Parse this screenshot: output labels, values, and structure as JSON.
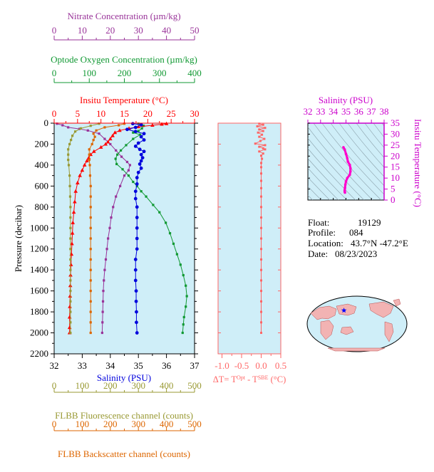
{
  "colors": {
    "nitrate": "#993399",
    "oxygen": "#119933",
    "temperature": "#ff0000",
    "salinity": "#0000dd",
    "fluorescence": "#999933",
    "backscatter": "#dd6600",
    "delta_t": "#ff6666",
    "ts_line": "#ff00cc",
    "panel_bg": "#cfeef8",
    "salinity_axis": "#cc00cc"
  },
  "chart_data": [
    {
      "type": "line",
      "panel": "main-profile",
      "ylabel": "Pressure (decibar)",
      "ylim": [
        2200,
        0
      ],
      "yticks": [
        "0",
        "200",
        "400",
        "600",
        "800",
        "1000",
        "1200",
        "1400",
        "1600",
        "1800",
        "2000",
        "2200"
      ],
      "axes": {
        "nitrate": {
          "label": "Nitrate Concentration (µm/kg)",
          "lim": [
            0,
            50
          ],
          "ticks": [
            "0",
            "10",
            "20",
            "30",
            "40",
            "50"
          ]
        },
        "oxygen": {
          "label": "Optode Oxygen Concentration (µm/kg)",
          "lim": [
            0,
            400
          ],
          "ticks": [
            "0",
            "100",
            "200",
            "300",
            "400"
          ]
        },
        "temperature": {
          "label": "Insitu Temperature (°C)",
          "lim": [
            0,
            30
          ],
          "ticks": [
            "0",
            "5",
            "10",
            "15",
            "20",
            "25",
            "30"
          ]
        },
        "salinity": {
          "label": "Salinity (PSU)",
          "lim": [
            32,
            37
          ],
          "ticks": [
            "32",
            "33",
            "34",
            "35",
            "36",
            "37"
          ]
        },
        "fluorescence": {
          "label": "FLBB Fluorescence channel (counts)",
          "lim": [
            0,
            500
          ],
          "ticks": [
            "0",
            "100",
            "200",
            "300",
            "400",
            "500"
          ]
        },
        "backscatter": {
          "label": "FLBB Backscatter channel (counts)",
          "lim": [
            0,
            500
          ],
          "ticks": [
            "0",
            "100",
            "200",
            "300",
            "400",
            "500"
          ]
        }
      },
      "series": [
        {
          "key": "nitrate",
          "axis": "nitrate",
          "marker": "square",
          "points": [
            [
              1,
              5
            ],
            [
              3,
              20
            ],
            [
              5,
              40
            ],
            [
              9,
              55
            ],
            [
              12,
              70
            ],
            [
              16,
              100
            ],
            [
              18,
              150
            ],
            [
              20,
              200
            ],
            [
              22,
              260
            ],
            [
              24,
              320
            ],
            [
              26,
              370
            ],
            [
              27,
              400
            ],
            [
              26.5,
              450
            ],
            [
              25,
              500
            ],
            [
              23.5,
              600
            ],
            [
              22,
              700
            ],
            [
              21,
              800
            ],
            [
              20.3,
              900
            ],
            [
              19.8,
              1000
            ],
            [
              19.2,
              1100
            ],
            [
              18.8,
              1200
            ],
            [
              18.4,
              1300
            ],
            [
              18,
              1400
            ],
            [
              17.7,
              1500
            ],
            [
              17.5,
              1600
            ],
            [
              17.4,
              1700
            ],
            [
              17.3,
              1800
            ],
            [
              17.2,
              1900
            ],
            [
              17.1,
              2000
            ]
          ]
        },
        {
          "key": "oxygen",
          "axis": "oxygen",
          "marker": "square",
          "points": [
            [
              240,
              5
            ],
            [
              255,
              25
            ],
            [
              250,
              50
            ],
            [
              240,
              75
            ],
            [
              225,
              90
            ],
            [
              245,
              110
            ],
            [
              225,
              150
            ],
            [
              205,
              210
            ],
            [
              190,
              260
            ],
            [
              180,
              300
            ],
            [
              175,
              340
            ],
            [
              178,
              390
            ],
            [
              195,
              440
            ],
            [
              212,
              500
            ],
            [
              225,
              560
            ],
            [
              236,
              600
            ],
            [
              248,
              650
            ],
            [
              262,
              700
            ],
            [
              282,
              780
            ],
            [
              300,
              850
            ],
            [
              318,
              950
            ],
            [
              330,
              1050
            ],
            [
              340,
              1150
            ],
            [
              350,
              1250
            ],
            [
              360,
              1350
            ],
            [
              368,
              1450
            ],
            [
              375,
              1550
            ],
            [
              378,
              1650
            ],
            [
              375,
              1750
            ],
            [
              370,
              1850
            ],
            [
              368,
              1920
            ],
            [
              366,
              2000
            ]
          ]
        },
        {
          "key": "temperature",
          "axis": "temperature",
          "marker": "triangle",
          "points": [
            [
              24,
              5
            ],
            [
              23,
              10
            ],
            [
              21,
              20
            ],
            [
              18,
              35
            ],
            [
              16,
              50
            ],
            [
              14,
              70
            ],
            [
              13,
              90
            ],
            [
              12.5,
              120
            ],
            [
              12,
              150
            ],
            [
              11.5,
              180
            ],
            [
              11,
              200
            ],
            [
              10,
              230
            ],
            [
              8.5,
              270
            ],
            [
              7.8,
              300
            ],
            [
              7.4,
              330
            ],
            [
              7,
              360
            ],
            [
              6.5,
              400
            ],
            [
              6,
              450
            ],
            [
              5.5,
              500
            ],
            [
              5,
              570
            ],
            [
              4.6,
              650
            ],
            [
              4.4,
              750
            ],
            [
              4.2,
              850
            ],
            [
              4,
              950
            ],
            [
              3.9,
              1050
            ],
            [
              3.8,
              1150
            ],
            [
              3.7,
              1250
            ],
            [
              3.6,
              1350
            ],
            [
              3.5,
              1450
            ],
            [
              3.45,
              1550
            ],
            [
              3.4,
              1650
            ],
            [
              3.35,
              1750
            ],
            [
              3.3,
              1850
            ],
            [
              3.3,
              1950
            ],
            [
              3.3,
              2000
            ]
          ]
        },
        {
          "key": "salinity",
          "axis": "salinity",
          "marker": "circle",
          "points": [
            [
              34.8,
              5
            ],
            [
              35.1,
              15
            ],
            [
              34.9,
              40
            ],
            [
              34.6,
              60
            ],
            [
              34.9,
              80
            ],
            [
              35.2,
              100
            ],
            [
              35.1,
              130
            ],
            [
              35.2,
              160
            ],
            [
              35.0,
              190
            ],
            [
              34.9,
              220
            ],
            [
              35.05,
              250
            ],
            [
              35.2,
              270
            ],
            [
              35.1,
              300
            ],
            [
              35.15,
              330
            ],
            [
              35.1,
              360
            ],
            [
              35.05,
              390
            ],
            [
              35.1,
              430
            ],
            [
              35.0,
              470
            ],
            [
              34.95,
              520
            ],
            [
              34.95,
              580
            ],
            [
              34.9,
              650
            ],
            [
              34.9,
              720
            ],
            [
              34.95,
              800
            ],
            [
              34.95,
              900
            ],
            [
              34.95,
              1000
            ],
            [
              34.95,
              1100
            ],
            [
              34.95,
              1200
            ],
            [
              34.9,
              1300
            ],
            [
              34.9,
              1400
            ],
            [
              34.9,
              1500
            ],
            [
              34.92,
              1600
            ],
            [
              34.92,
              1700
            ],
            [
              34.93,
              1800
            ],
            [
              34.93,
              1900
            ],
            [
              34.95,
              2000
            ]
          ]
        },
        {
          "key": "fluorescence",
          "axis": "fluorescence",
          "marker": "square",
          "points": [
            [
              160,
              5
            ],
            [
              130,
              25
            ],
            [
              95,
              50
            ],
            [
              75,
              80
            ],
            [
              65,
              120
            ],
            [
              60,
              160
            ],
            [
              55,
              200
            ],
            [
              50,
              250
            ],
            [
              50,
              300
            ],
            [
              50,
              350
            ],
            [
              52,
              400
            ],
            [
              55,
              500
            ],
            [
              56,
              600
            ],
            [
              57,
              700
            ],
            [
              58,
              800
            ],
            [
              58,
              900
            ],
            [
              58,
              1000
            ],
            [
              58,
              1100
            ],
            [
              58,
              1200
            ],
            [
              58,
              1300
            ],
            [
              58,
              1400
            ],
            [
              58,
              1500
            ],
            [
              58,
              1600
            ],
            [
              58,
              1700
            ],
            [
              58,
              1800
            ],
            [
              58,
              1900
            ],
            [
              58,
              2000
            ]
          ]
        },
        {
          "key": "backscatter",
          "axis": "backscatter",
          "marker": "square",
          "points": [
            [
              250,
              5
            ],
            [
              230,
              20
            ],
            [
              180,
              40
            ],
            [
              150,
              70
            ],
            [
              140,
              100
            ],
            [
              145,
              130
            ],
            [
              140,
              160
            ],
            [
              135,
              200
            ],
            [
              125,
              250
            ],
            [
              125,
              300
            ],
            [
              125,
              350
            ],
            [
              127,
              400
            ],
            [
              128,
              500
            ],
            [
              130,
              600
            ],
            [
              130,
              700
            ],
            [
              130,
              800
            ],
            [
              130,
              900
            ],
            [
              130,
              1000
            ],
            [
              130,
              1100
            ],
            [
              130,
              1200
            ],
            [
              130,
              1300
            ],
            [
              130,
              1400
            ],
            [
              130,
              1500
            ],
            [
              130,
              1600
            ],
            [
              130,
              1700
            ],
            [
              130,
              1800
            ],
            [
              130,
              1900
            ],
            [
              130,
              2000
            ]
          ]
        }
      ]
    },
    {
      "type": "line",
      "panel": "delta-t",
      "xlabel": "ΔT= T",
      "xlabel_sup1": "Opt",
      "xlabel_mid": " - T",
      "xlabel_sup2": "SBE",
      "xlabel_unit": " (°C)",
      "xlim": [
        -1.1,
        0.5
      ],
      "ylim": [
        2200,
        0
      ],
      "xticks": [
        "-1.0",
        "-0.5",
        "0.0",
        "0.5"
      ],
      "points": [
        [
          -0.05,
          5
        ],
        [
          0.05,
          15
        ],
        [
          -0.1,
          30
        ],
        [
          0.1,
          45
        ],
        [
          -0.05,
          60
        ],
        [
          0.05,
          75
        ],
        [
          -0.08,
          90
        ],
        [
          0.02,
          110
        ],
        [
          -0.05,
          130
        ],
        [
          0.08,
          150
        ],
        [
          -0.02,
          170
        ],
        [
          -0.15,
          195
        ],
        [
          0.1,
          210
        ],
        [
          -0.05,
          225
        ],
        [
          0.05,
          240
        ],
        [
          0.1,
          250
        ],
        [
          -0.05,
          270
        ],
        [
          0.05,
          290
        ],
        [
          0.0,
          310
        ],
        [
          0.02,
          340
        ],
        [
          0.0,
          380
        ],
        [
          0.0,
          420
        ],
        [
          0.0,
          480
        ],
        [
          0.0,
          550
        ],
        [
          0.0,
          620
        ],
        [
          0.0,
          700
        ],
        [
          0.0,
          800
        ],
        [
          0.0,
          900
        ],
        [
          0.0,
          1000
        ],
        [
          0.0,
          1100
        ],
        [
          0.0,
          1200
        ],
        [
          0.0,
          1300
        ],
        [
          0.0,
          1400
        ],
        [
          0.0,
          1500
        ],
        [
          0.0,
          1600
        ],
        [
          0.0,
          1700
        ],
        [
          0.0,
          1800
        ],
        [
          0.0,
          1900
        ],
        [
          0.0,
          2000
        ]
      ]
    },
    {
      "type": "line",
      "panel": "t-s-diagram",
      "xlabel": "Salinity (PSU)",
      "ylabel": "Insitu Temperature (°C)",
      "xlim": [
        32,
        38
      ],
      "ylim": [
        0,
        35
      ],
      "xticks": [
        "32",
        "33",
        "34",
        "35",
        "36",
        "37",
        "38"
      ],
      "yticks": [
        "0",
        "5",
        "10",
        "15",
        "20",
        "25",
        "30",
        "35"
      ],
      "points": [
        [
          34.8,
          24
        ],
        [
          34.9,
          23
        ],
        [
          35.0,
          21
        ],
        [
          35.1,
          19
        ],
        [
          35.15,
          17.5
        ],
        [
          35.3,
          16
        ],
        [
          35.35,
          14.5
        ],
        [
          35.35,
          13
        ],
        [
          35.3,
          11.5
        ],
        [
          35.1,
          10
        ],
        [
          35.0,
          8.5
        ],
        [
          34.95,
          7
        ],
        [
          34.92,
          5.5
        ],
        [
          34.9,
          4.5
        ],
        [
          34.9,
          3.8
        ],
        [
          34.92,
          3.4
        ]
      ]
    }
  ],
  "info": {
    "float_label": "Float:",
    "float_value": "19129",
    "profile_label": "Profile:",
    "profile_value": "084",
    "location_label": "Location:",
    "location_value": "43.7°N  -47.2°E",
    "date_label": "Date:",
    "date_value": "08/23/2023"
  },
  "map": {
    "marker_icon": "star-icon",
    "marker_lat": 43.7,
    "marker_lon": -47.2
  }
}
